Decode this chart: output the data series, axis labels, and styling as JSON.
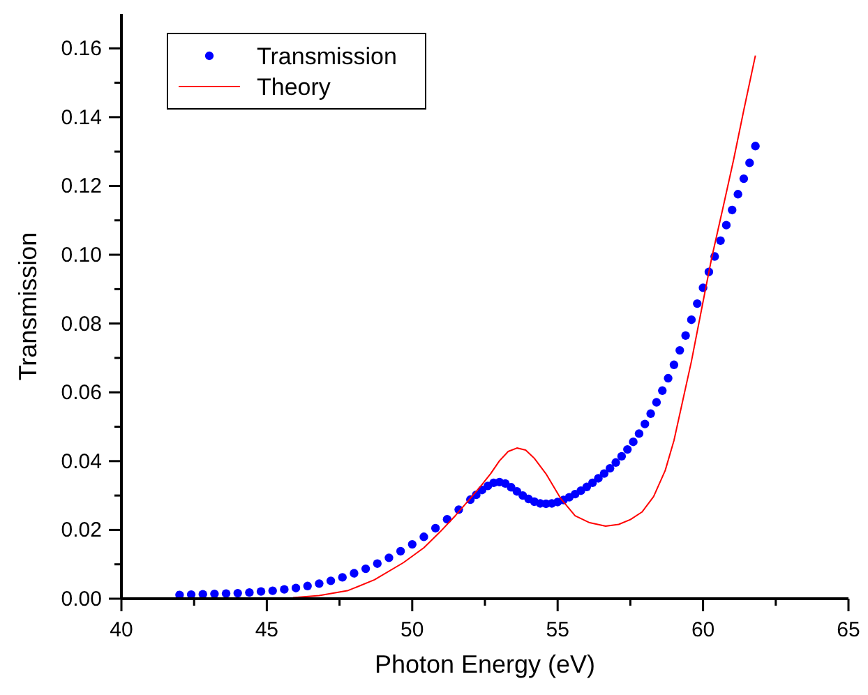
{
  "chart_data": {
    "type": "scatter",
    "xlabel": "Photon Energy (eV)",
    "ylabel": "Transmission",
    "legend": "top left",
    "xlim": [
      40,
      65
    ],
    "ylim": [
      0,
      0.17
    ],
    "xticks": [
      40,
      {
        "value": 42.5,
        "label": null
      },
      45,
      {
        "value": 47.5,
        "label": null
      },
      50,
      {
        "value": 52.5,
        "label": null
      },
      55,
      {
        "value": 57.5,
        "label": null
      },
      60,
      {
        "value": 62.5,
        "label": null
      },
      65
    ],
    "yticks": [
      {
        "value": 0,
        "label": "0.00"
      },
      {
        "value": 0.01,
        "label": null
      },
      {
        "value": 0.02,
        "label": "0.02"
      },
      {
        "value": 0.03,
        "label": null
      },
      {
        "value": 0.04,
        "label": "0.04"
      },
      {
        "value": 0.05,
        "label": null
      },
      {
        "value": 0.06,
        "label": "0.06"
      },
      {
        "value": 0.07,
        "label": null
      },
      {
        "value": 0.08,
        "label": "0.08"
      },
      {
        "value": 0.09,
        "label": null
      },
      {
        "value": 0.1,
        "label": "0.10"
      },
      {
        "value": 0.11,
        "label": null
      },
      {
        "value": 0.12,
        "label": "0.12"
      },
      {
        "value": 0.13,
        "label": null
      },
      {
        "value": 0.14,
        "label": "0.14"
      },
      {
        "value": 0.15,
        "label": null
      },
      {
        "value": 0.16,
        "label": "0.16"
      }
    ],
    "series": [
      {
        "name": "Transmission",
        "marker": "circle",
        "color": "#0000ff",
        "x": [
          42,
          42.4,
          42.8,
          43.2,
          43.6,
          44,
          44.4,
          44.8,
          45.2,
          45.6,
          46,
          46.4,
          46.8,
          47.2,
          47.6,
          48,
          48.4,
          48.8,
          49.2,
          49.6,
          50,
          50.4,
          50.8,
          51.2,
          51.6,
          52,
          52.2,
          52.4,
          52.6,
          52.8,
          53,
          53.2,
          53.4,
          53.6,
          53.8,
          54,
          54.2,
          54.4,
          54.6,
          54.8,
          55,
          55.2,
          55.4,
          55.6,
          55.8,
          56,
          56.2,
          56.4,
          56.6,
          56.8,
          57,
          57.2,
          57.4,
          57.6,
          57.8,
          58,
          58.2,
          58.4,
          58.6,
          58.8,
          59,
          59.2,
          59.4,
          59.6,
          59.8,
          60,
          60.2,
          60.4,
          60.6,
          60.8,
          61,
          61.2,
          61.4,
          61.6,
          61.8
        ],
        "values": [
          0.0011,
          0.0012,
          0.0013,
          0.0014,
          0.0015,
          0.0016,
          0.0018,
          0.0021,
          0.0023,
          0.0027,
          0.0031,
          0.0037,
          0.0044,
          0.0052,
          0.0062,
          0.0074,
          0.0087,
          0.0102,
          0.0119,
          0.0138,
          0.0158,
          0.018,
          0.0205,
          0.0231,
          0.0259,
          0.0288,
          0.0302,
          0.0316,
          0.0328,
          0.0337,
          0.0339,
          0.0335,
          0.0324,
          0.0312,
          0.03,
          0.029,
          0.0282,
          0.0277,
          0.0276,
          0.0277,
          0.0281,
          0.0287,
          0.0295,
          0.0304,
          0.0314,
          0.0325,
          0.0337,
          0.035,
          0.0364,
          0.0379,
          0.0396,
          0.0414,
          0.0434,
          0.0456,
          0.048,
          0.0508,
          0.0538,
          0.0571,
          0.0605,
          0.0641,
          0.068,
          0.0722,
          0.0765,
          0.0811,
          0.0858,
          0.0904,
          0.095,
          0.0995,
          0.1041,
          0.1086,
          0.113,
          0.1176,
          0.1221,
          0.1267,
          0.1316
        ]
      },
      {
        "name": "Theory",
        "type": "line",
        "marker": "none",
        "color": "#ff0000",
        "x": [
          45.9,
          46.8,
          47.8,
          48.7,
          49.7,
          50.4,
          51,
          51.5,
          52,
          52.4,
          52.7,
          53,
          53.3,
          53.6,
          53.9,
          54.2,
          54.6,
          55.1,
          55.6,
          56.1,
          56.65,
          57.1,
          57.5,
          57.9,
          58.3,
          58.7,
          59,
          59.3,
          59.6,
          59.8,
          60.05,
          60.3,
          60.7,
          61.05,
          61.4,
          61.8
        ],
        "values": [
          0.0003,
          0.0009,
          0.0024,
          0.0055,
          0.0105,
          0.0148,
          0.0198,
          0.0243,
          0.0292,
          0.0332,
          0.0364,
          0.0401,
          0.0428,
          0.0438,
          0.0432,
          0.0408,
          0.0363,
          0.0292,
          0.0241,
          0.0221,
          0.0211,
          0.0216,
          0.023,
          0.0252,
          0.0297,
          0.0373,
          0.046,
          0.0575,
          0.069,
          0.0777,
          0.0885,
          0.0992,
          0.1142,
          0.1276,
          0.142,
          0.1579
        ]
      }
    ]
  }
}
